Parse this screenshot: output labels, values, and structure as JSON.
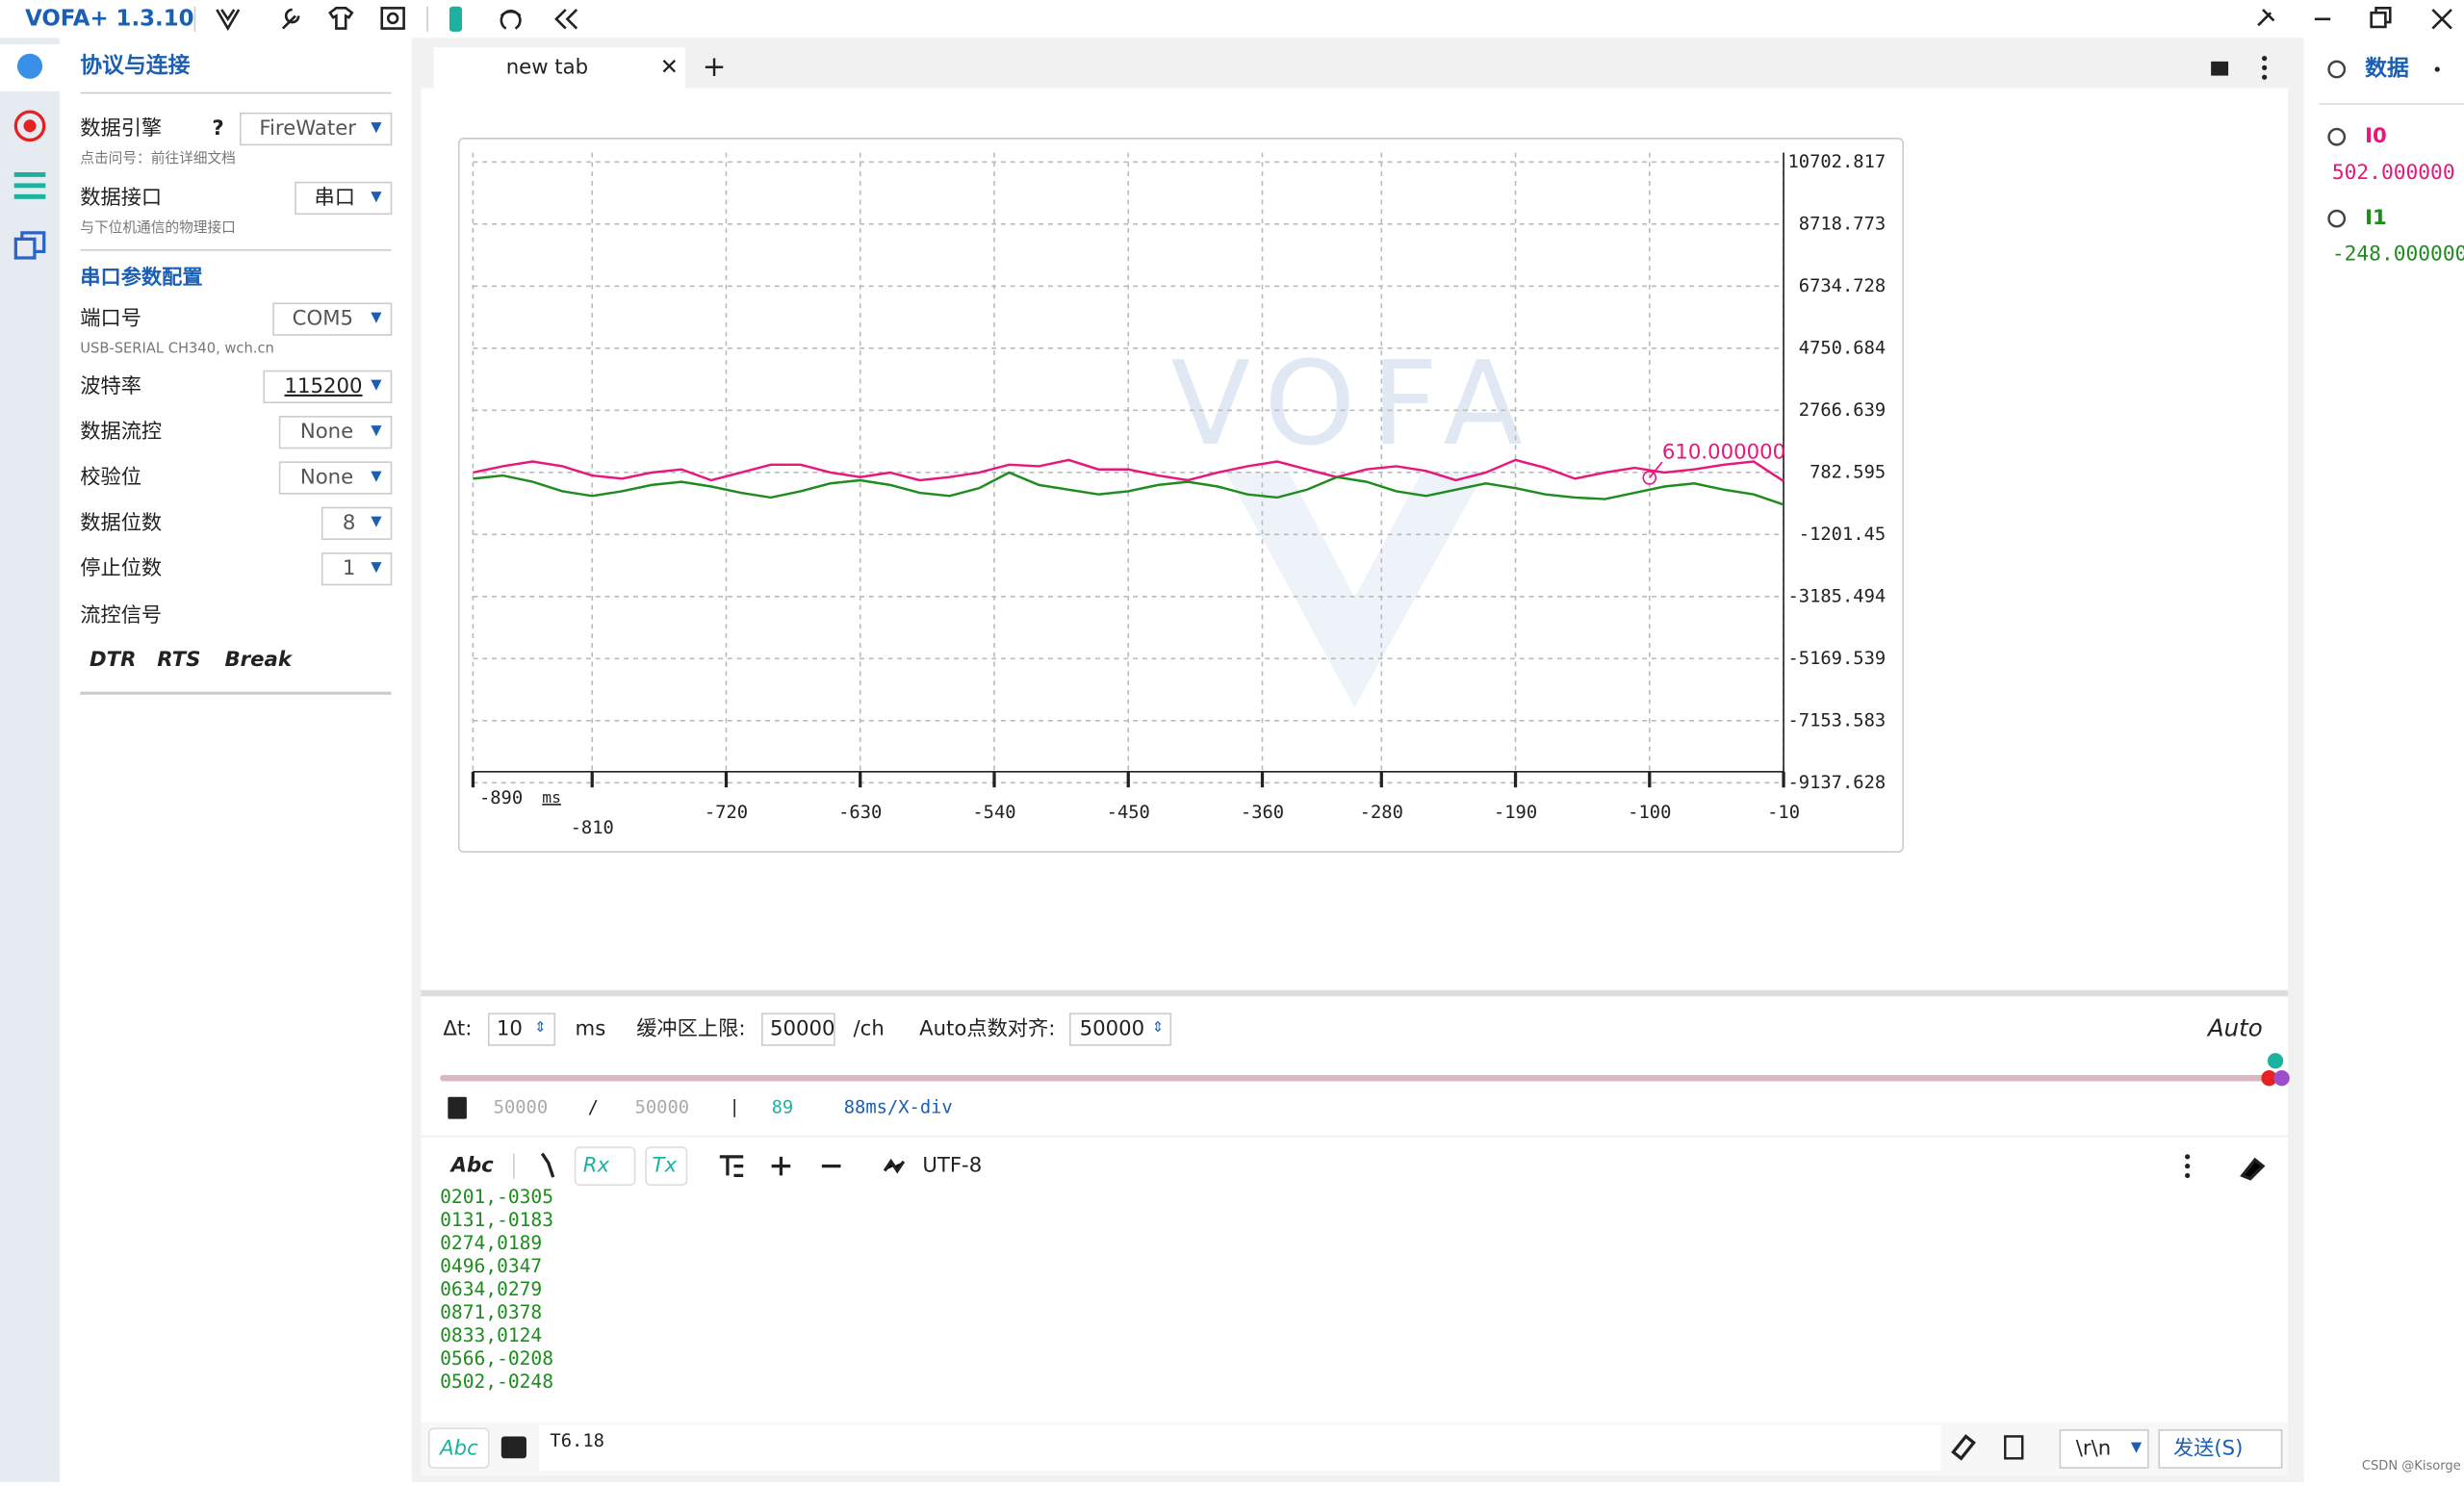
{
  "app": {
    "title": "VOFA+ 1.3.10"
  },
  "sidebar": {
    "heading": "协议与连接",
    "engine": {
      "label": "数据引擎",
      "help": "?",
      "value": "FireWater",
      "hint": "点击问号：前往详细文档"
    },
    "interface": {
      "label": "数据接口",
      "value": "串口",
      "hint": "与下位机通信的物理接口"
    },
    "serial_heading": "串口参数配置",
    "port": {
      "label": "端口号",
      "value": "COM5",
      "hint": "USB-SERIAL CH340, wch.cn"
    },
    "baud": {
      "label": "波特率",
      "value": "115200"
    },
    "flow": {
      "label": "数据流控",
      "value": "None"
    },
    "parity": {
      "label": "校验位",
      "value": "None"
    },
    "databits": {
      "label": "数据位数",
      "value": "8"
    },
    "stopbits": {
      "label": "停止位数",
      "value": "1"
    },
    "signals_label": "流控信号",
    "signals": [
      "DTR",
      "RTS",
      "Break"
    ]
  },
  "tab": {
    "name": "new tab"
  },
  "plot": {
    "type": "line",
    "watermark": "VOFA",
    "grid": true,
    "x_unit": "ms",
    "x": [
      -890,
      -870,
      -850,
      -830,
      -810,
      -790,
      -770,
      -750,
      -730,
      -710,
      -690,
      -670,
      -650,
      -630,
      -610,
      -590,
      -570,
      -550,
      -530,
      -510,
      -490,
      -470,
      -450,
      -430,
      -410,
      -390,
      -370,
      -350,
      -330,
      -310,
      -290,
      -270,
      -250,
      -230,
      -210,
      -190,
      -170,
      -150,
      -130,
      -110,
      -90,
      -70,
      -50,
      -30,
      -10
    ],
    "series": [
      {
        "name": "I0",
        "color": "#e8177b",
        "values": [
          780,
          980,
          1130,
          980,
          680,
          580,
          780,
          880,
          530,
          780,
          1030,
          1030,
          780,
          630,
          780,
          530,
          630,
          780,
          1030,
          980,
          1180,
          880,
          880,
          680,
          530,
          780,
          980,
          1130,
          880,
          630,
          880,
          980,
          830,
          530,
          780,
          1180,
          930,
          580,
          780,
          930,
          780,
          880,
          1030,
          1130,
          502
        ]
      },
      {
        "name": "I1",
        "color": "#1e8c1e",
        "values": [
          580,
          680,
          480,
          180,
          30,
          180,
          380,
          480,
          330,
          130,
          -20,
          180,
          430,
          530,
          380,
          130,
          30,
          280,
          780,
          380,
          230,
          80,
          180,
          380,
          480,
          330,
          80,
          -20,
          230,
          630,
          480,
          180,
          30,
          230,
          430,
          280,
          80,
          -20,
          -70,
          130,
          330,
          430,
          230,
          80,
          -248
        ]
      }
    ],
    "xlim": [
      -890,
      -10
    ],
    "xticks": [
      -890,
      -810,
      -720,
      -630,
      -540,
      -450,
      -360,
      -280,
      -190,
      -100,
      -10
    ],
    "ylim": [
      -9137.628,
      10702.817
    ],
    "yticks": [
      10702.817,
      8718.773,
      6734.728,
      4750.684,
      2766.639,
      782.595,
      -1201.45,
      -3185.494,
      -5169.539,
      -7153.583,
      -9137.628
    ],
    "annotation": {
      "x": -100,
      "value": 610,
      "label": "610.000000"
    }
  },
  "controls": {
    "dt_label": "Δt:",
    "dt": "10",
    "dt_unit": "ms",
    "buffer_label": "缓冲区上限:",
    "buffer": "50000",
    "buffer_unit": "/ch",
    "auto_label": "Auto点数对齐:",
    "auto": "50000",
    "mode": "Auto"
  },
  "status": {
    "count": "50000",
    "sep": "/",
    "total": "50000",
    "bar": "|",
    "rate": "89",
    "xdiv": "88ms/X-div"
  },
  "toolbar": {
    "abc": "Abc",
    "rx": "Rx",
    "tx": "Tx",
    "encoding": "UTF-8"
  },
  "console": {
    "lines": [
      "0201,-0305",
      "0131,-0183",
      "0274,0189",
      "0496,0347",
      "0634,0279",
      "0871,0378",
      "0833,0124",
      "0566,-0208",
      "0502,-0248"
    ]
  },
  "send": {
    "abc": "Abc",
    "text": "T6.18",
    "ending": "\\r\\n",
    "button": "发送(S)"
  },
  "data_panel": {
    "title": "数据",
    "values": [
      "502.000000",
      "-248.000000"
    ]
  },
  "watermark": "CSDN @Kisorge"
}
